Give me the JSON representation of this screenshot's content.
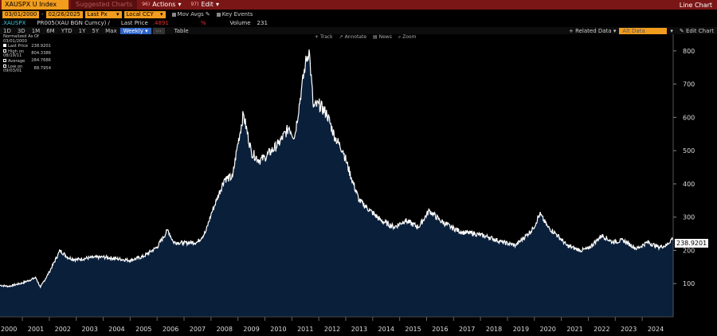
{
  "titlebar": {
    "ticker": "XAUSPX U Index",
    "suggested": "Suggested Charts",
    "actions_num": "96)",
    "actions": "Actions",
    "edit_num": "97)",
    "edit": "Edit",
    "right": "Line Chart"
  },
  "controls": {
    "start_date": "03/01/2000",
    "end_date": "02/26/2025",
    "field": "Last Px",
    "currency": "Local CCY",
    "mov_avgs": "Mov Avgs",
    "key_events": "Key Events"
  },
  "security_row": {
    "ticker": ".XAUSPX",
    "desc": "PR005(XAU BGN Curncy) /",
    "last_price_label": "Last Price",
    "last_price_value": ".4891",
    "pct_label": "%",
    "volume_label": "Volume",
    "volume_value": "231"
  },
  "periods": [
    "1D",
    "3D",
    "1M",
    "6M",
    "YTD",
    "1Y",
    "5Y",
    "Max"
  ],
  "frequency": "Weekly",
  "table_label": "Table",
  "right_controls": {
    "related": "Related Data",
    "alt_data": "Alt Data",
    "edit_chart": "Edit Chart"
  },
  "tools": [
    "Track",
    "Annotate",
    "News",
    "Zoom"
  ],
  "legend": {
    "header": "Normalized As Of 03/01/2000",
    "rows": [
      {
        "label": "Last Price",
        "value": "238.9201"
      },
      {
        "label": "High on 08/19/11",
        "value": "804.3386"
      },
      {
        "label": "Average",
        "value": "284.7686"
      },
      {
        "label": "Low on 09/03/01",
        "value": "88.7954"
      }
    ]
  },
  "chart_data": {
    "type": "area",
    "series_name": ".XAUSPX",
    "last_label": "238.9201",
    "ylim": [
      0,
      850
    ],
    "yticks": [
      100,
      200,
      300,
      400,
      500,
      600,
      700,
      800
    ],
    "xlim": [
      2000.17,
      2025.15
    ],
    "xticks": [
      "2000",
      "2001",
      "2002",
      "2003",
      "2004",
      "2005",
      "2006",
      "2007",
      "2008",
      "2009",
      "2010",
      "2011",
      "2012",
      "2013",
      "2014",
      "2015",
      "2016",
      "2017",
      "2018",
      "2019",
      "2020",
      "2021",
      "2022",
      "2023",
      "2024"
    ],
    "x": [
      2000.17,
      2000.5,
      2001.0,
      2001.5,
      2001.67,
      2002.0,
      2002.4,
      2002.7,
      2003.0,
      2003.5,
      2004.0,
      2004.5,
      2005.0,
      2005.5,
      2006.0,
      2006.4,
      2006.6,
      2007.0,
      2007.5,
      2007.8,
      2008.0,
      2008.2,
      2008.5,
      2008.8,
      2008.95,
      2009.2,
      2009.5,
      2009.8,
      2010.0,
      2010.5,
      2010.9,
      2011.1,
      2011.35,
      2011.5,
      2011.64,
      2011.8,
      2012.0,
      2012.3,
      2012.6,
      2012.9,
      2013.2,
      2013.5,
      2013.9,
      2014.3,
      2014.8,
      2015.2,
      2015.7,
      2016.1,
      2016.5,
      2016.9,
      2017.3,
      2017.8,
      2018.3,
      2018.8,
      2019.3,
      2019.7,
      2019.95,
      2020.2,
      2020.5,
      2020.8,
      2021.2,
      2021.7,
      2022.0,
      2022.5,
      2022.9,
      2023.3,
      2023.8,
      2024.2,
      2024.6,
      2024.9,
      2025.15
    ],
    "values": [
      95,
      92,
      102,
      118,
      89,
      135,
      200,
      178,
      172,
      178,
      180,
      175,
      170,
      182,
      210,
      262,
      225,
      222,
      225,
      255,
      308,
      350,
      415,
      420,
      500,
      610,
      495,
      470,
      480,
      520,
      570,
      540,
      680,
      760,
      804,
      630,
      640,
      610,
      540,
      500,
      420,
      350,
      320,
      290,
      270,
      290,
      270,
      320,
      290,
      270,
      255,
      250,
      240,
      225,
      215,
      245,
      265,
      310,
      270,
      250,
      215,
      200,
      205,
      245,
      225,
      230,
      205,
      225,
      210,
      215,
      239
    ]
  }
}
